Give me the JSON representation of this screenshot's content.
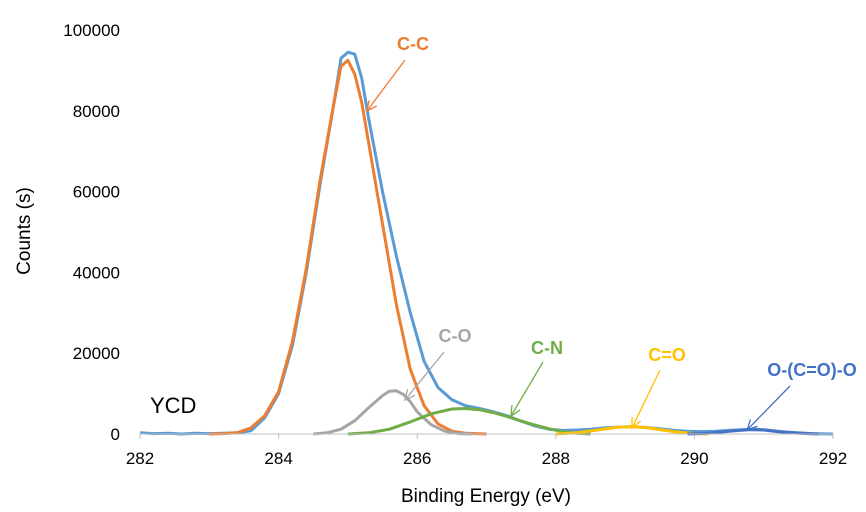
{
  "chart_data": {
    "type": "line",
    "title": "",
    "xlabel": "Binding Energy (eV)",
    "ylabel": "Counts (s)",
    "xlim": [
      282,
      292
    ],
    "ylim": [
      0,
      100000
    ],
    "xticks": [
      282,
      284,
      286,
      288,
      290,
      292
    ],
    "yticks": [
      0,
      20000,
      40000,
      60000,
      80000,
      100000
    ],
    "grid": false,
    "sample_label": "YCD",
    "series": [
      {
        "color": "#5B9BD5",
        "points": [
          [
            282.0,
            300
          ],
          [
            282.2,
            100
          ],
          [
            282.4,
            200
          ],
          [
            282.6,
            0
          ],
          [
            282.8,
            200
          ],
          [
            283.0,
            100
          ],
          [
            283.2,
            200
          ],
          [
            283.4,
            300
          ],
          [
            283.6,
            800
          ],
          [
            283.8,
            4000
          ],
          [
            284.0,
            10000
          ],
          [
            284.2,
            22000
          ],
          [
            284.4,
            40000
          ],
          [
            284.6,
            62000
          ],
          [
            284.8,
            82000
          ],
          [
            284.9,
            93000
          ],
          [
            285.0,
            94500
          ],
          [
            285.1,
            94000
          ],
          [
            285.2,
            88000
          ],
          [
            285.3,
            78000
          ],
          [
            285.5,
            60000
          ],
          [
            285.7,
            44000
          ],
          [
            285.9,
            30000
          ],
          [
            286.1,
            18000
          ],
          [
            286.3,
            11500
          ],
          [
            286.5,
            8500
          ],
          [
            286.7,
            7000
          ],
          [
            286.9,
            6300
          ],
          [
            287.1,
            5500
          ],
          [
            287.3,
            4500
          ],
          [
            287.5,
            3200
          ],
          [
            287.7,
            2000
          ],
          [
            287.9,
            1200
          ],
          [
            288.1,
            900
          ],
          [
            288.3,
            1000
          ],
          [
            288.5,
            1200
          ],
          [
            288.7,
            1500
          ],
          [
            288.9,
            1700
          ],
          [
            289.1,
            1800
          ],
          [
            289.3,
            1600
          ],
          [
            289.5,
            1300
          ],
          [
            289.7,
            900
          ],
          [
            289.9,
            700
          ],
          [
            290.1,
            600
          ],
          [
            290.3,
            700
          ],
          [
            290.5,
            900
          ],
          [
            290.7,
            1100
          ],
          [
            290.9,
            1200
          ],
          [
            291.1,
            900
          ],
          [
            291.3,
            500
          ],
          [
            291.5,
            300
          ],
          [
            291.7,
            100
          ],
          [
            292.0,
            0
          ]
        ]
      },
      {
        "color": "#ED7D31",
        "points": [
          [
            283.0,
            0
          ],
          [
            283.2,
            100
          ],
          [
            283.4,
            300
          ],
          [
            283.6,
            1500
          ],
          [
            283.8,
            4500
          ],
          [
            284.0,
            10500
          ],
          [
            284.2,
            23000
          ],
          [
            284.4,
            41000
          ],
          [
            284.6,
            63000
          ],
          [
            284.8,
            82000
          ],
          [
            284.9,
            91000
          ],
          [
            285.0,
            92500
          ],
          [
            285.1,
            89000
          ],
          [
            285.2,
            82000
          ],
          [
            285.3,
            72000
          ],
          [
            285.5,
            52000
          ],
          [
            285.7,
            32000
          ],
          [
            285.9,
            16000
          ],
          [
            286.1,
            7000
          ],
          [
            286.3,
            2500
          ],
          [
            286.5,
            700
          ],
          [
            286.7,
            200
          ],
          [
            287.0,
            0
          ]
        ]
      },
      {
        "color": "#A5A5A5",
        "points": [
          [
            284.5,
            0
          ],
          [
            284.7,
            300
          ],
          [
            284.9,
            1200
          ],
          [
            285.1,
            3300
          ],
          [
            285.3,
            6500
          ],
          [
            285.5,
            9500
          ],
          [
            285.6,
            10600
          ],
          [
            285.7,
            10700
          ],
          [
            285.8,
            9800
          ],
          [
            285.9,
            8000
          ],
          [
            286.0,
            5500
          ],
          [
            286.2,
            2300
          ],
          [
            286.4,
            700
          ],
          [
            286.6,
            100
          ],
          [
            286.8,
            0
          ]
        ]
      },
      {
        "color": "#70AD47",
        "points": [
          [
            285.0,
            0
          ],
          [
            285.3,
            300
          ],
          [
            285.6,
            1200
          ],
          [
            285.9,
            3000
          ],
          [
            286.2,
            5000
          ],
          [
            286.5,
            6200
          ],
          [
            286.7,
            6300
          ],
          [
            286.9,
            6000
          ],
          [
            287.1,
            5300
          ],
          [
            287.3,
            4300
          ],
          [
            287.5,
            3200
          ],
          [
            287.7,
            2200
          ],
          [
            287.9,
            1300
          ],
          [
            288.1,
            600
          ],
          [
            288.3,
            200
          ],
          [
            288.5,
            0
          ]
        ]
      },
      {
        "color": "#FFC000",
        "points": [
          [
            288.0,
            0
          ],
          [
            288.3,
            300
          ],
          [
            288.6,
            1000
          ],
          [
            288.9,
            1700
          ],
          [
            289.1,
            1800
          ],
          [
            289.3,
            1600
          ],
          [
            289.5,
            1100
          ],
          [
            289.7,
            600
          ],
          [
            290.0,
            100
          ],
          [
            290.2,
            0
          ]
        ]
      },
      {
        "color": "#4472C4",
        "points": [
          [
            289.9,
            0
          ],
          [
            290.2,
            200
          ],
          [
            290.5,
            700
          ],
          [
            290.8,
            1100
          ],
          [
            291.0,
            1000
          ],
          [
            291.2,
            600
          ],
          [
            291.5,
            200
          ],
          [
            291.8,
            0
          ]
        ]
      }
    ],
    "annotations": [
      {
        "text": "C-C",
        "color": "#ED7D31"
      },
      {
        "text": "C-O",
        "color": "#A5A5A5"
      },
      {
        "text": "C-N",
        "color": "#70AD47"
      },
      {
        "text": "C=O",
        "color": "#FFC000"
      },
      {
        "text": "O-(C=O)-O",
        "color": "#4472C4"
      }
    ]
  }
}
